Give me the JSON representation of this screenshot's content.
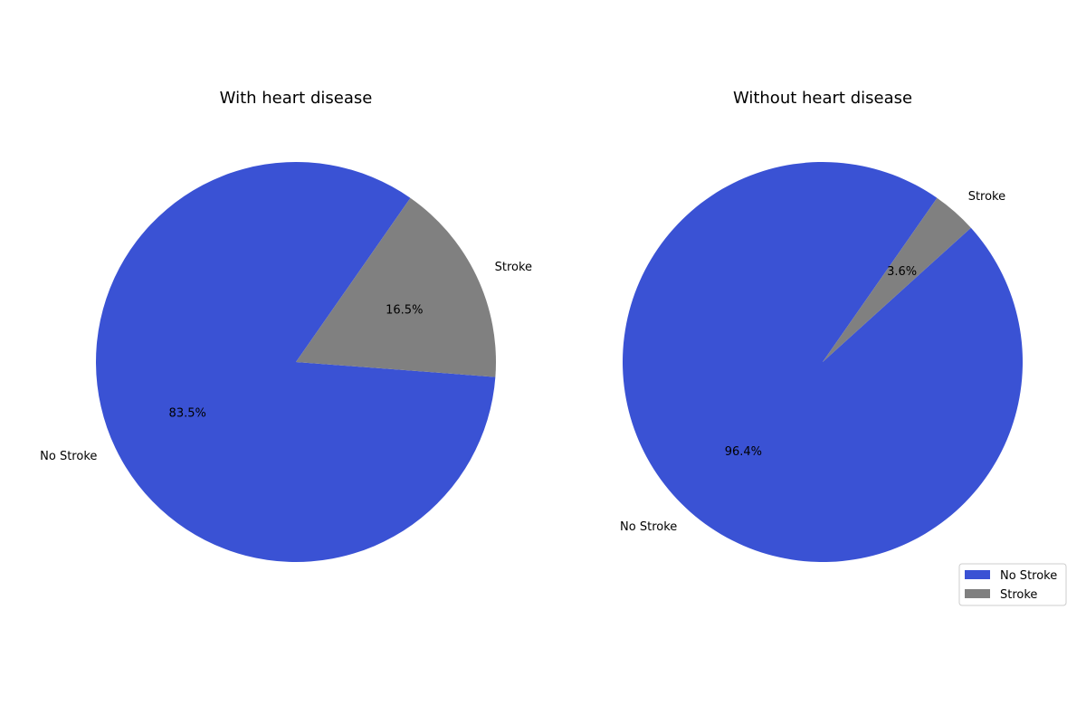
{
  "chart_data": [
    {
      "type": "pie",
      "title": "With heart disease",
      "categories": [
        "No Stroke",
        "Stroke"
      ],
      "values": [
        83.5,
        16.5
      ],
      "autopct_labels": [
        "83.5%",
        "16.5%"
      ]
    },
    {
      "type": "pie",
      "title": "Without heart disease",
      "categories": [
        "No Stroke",
        "Stroke"
      ],
      "values": [
        96.4,
        3.6
      ],
      "autopct_labels": [
        "96.4%",
        "3.6%"
      ]
    }
  ],
  "legend": {
    "placement": "bottom-right",
    "items": [
      {
        "label": "No Stroke",
        "color": "#3a52d4"
      },
      {
        "label": "Stroke",
        "color": "#808080"
      }
    ]
  },
  "colors": {
    "No Stroke": "#3a52d4",
    "Stroke": "#808080"
  }
}
